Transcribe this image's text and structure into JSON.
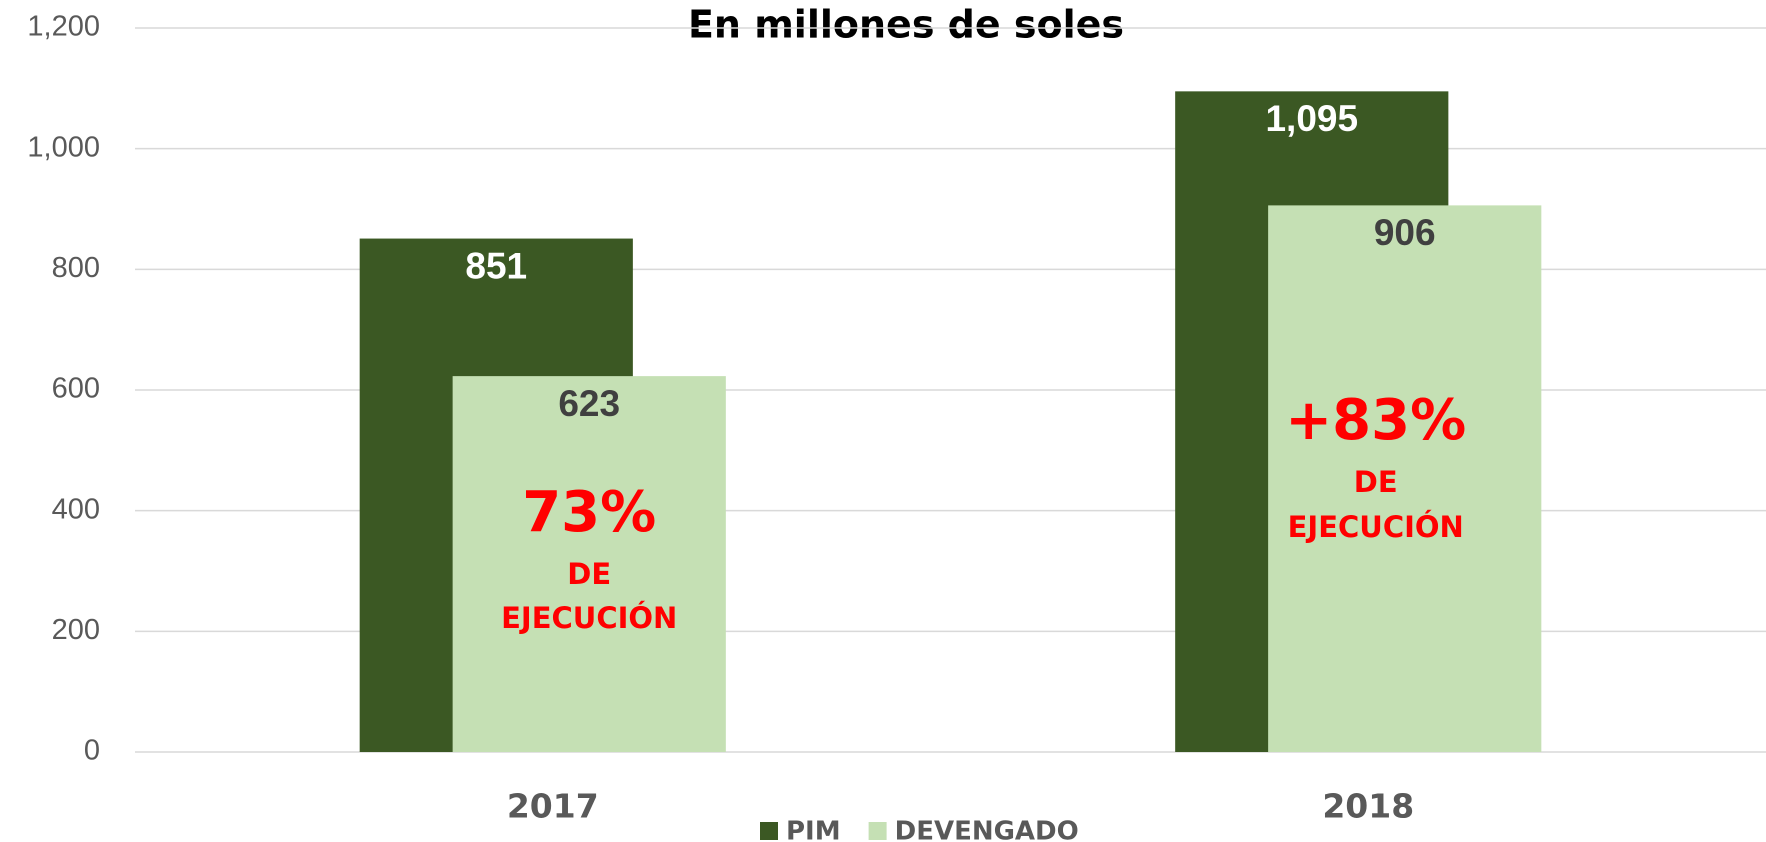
{
  "chart_data": {
    "type": "bar",
    "title": "En millones de soles",
    "categories": [
      "2017",
      "2018"
    ],
    "series": [
      {
        "name": "PIM",
        "color": "#3b5823",
        "values": [
          851,
          1095
        ],
        "value_labels": [
          "851",
          "1,095"
        ],
        "label_color": "#ffffff"
      },
      {
        "name": "DEVENGADO",
        "color": "#c5e0b4",
        "values": [
          623,
          906
        ],
        "value_labels": [
          "623",
          "906"
        ],
        "label_color": "#404040"
      }
    ],
    "annotations": [
      [
        "73%",
        "DE",
        "EJECUCIÓN"
      ],
      [
        "+83%",
        "DE",
        "EJECUCIÓN"
      ]
    ],
    "annotation_color": "#ff0000",
    "ylim": [
      0,
      1200
    ],
    "yticks": [
      0,
      200,
      400,
      600,
      800,
      {
        "value": 1000,
        "label": "1,000"
      },
      {
        "value": 1200,
        "label": "1,200"
      }
    ],
    "grid": true,
    "legend": "bottom"
  }
}
